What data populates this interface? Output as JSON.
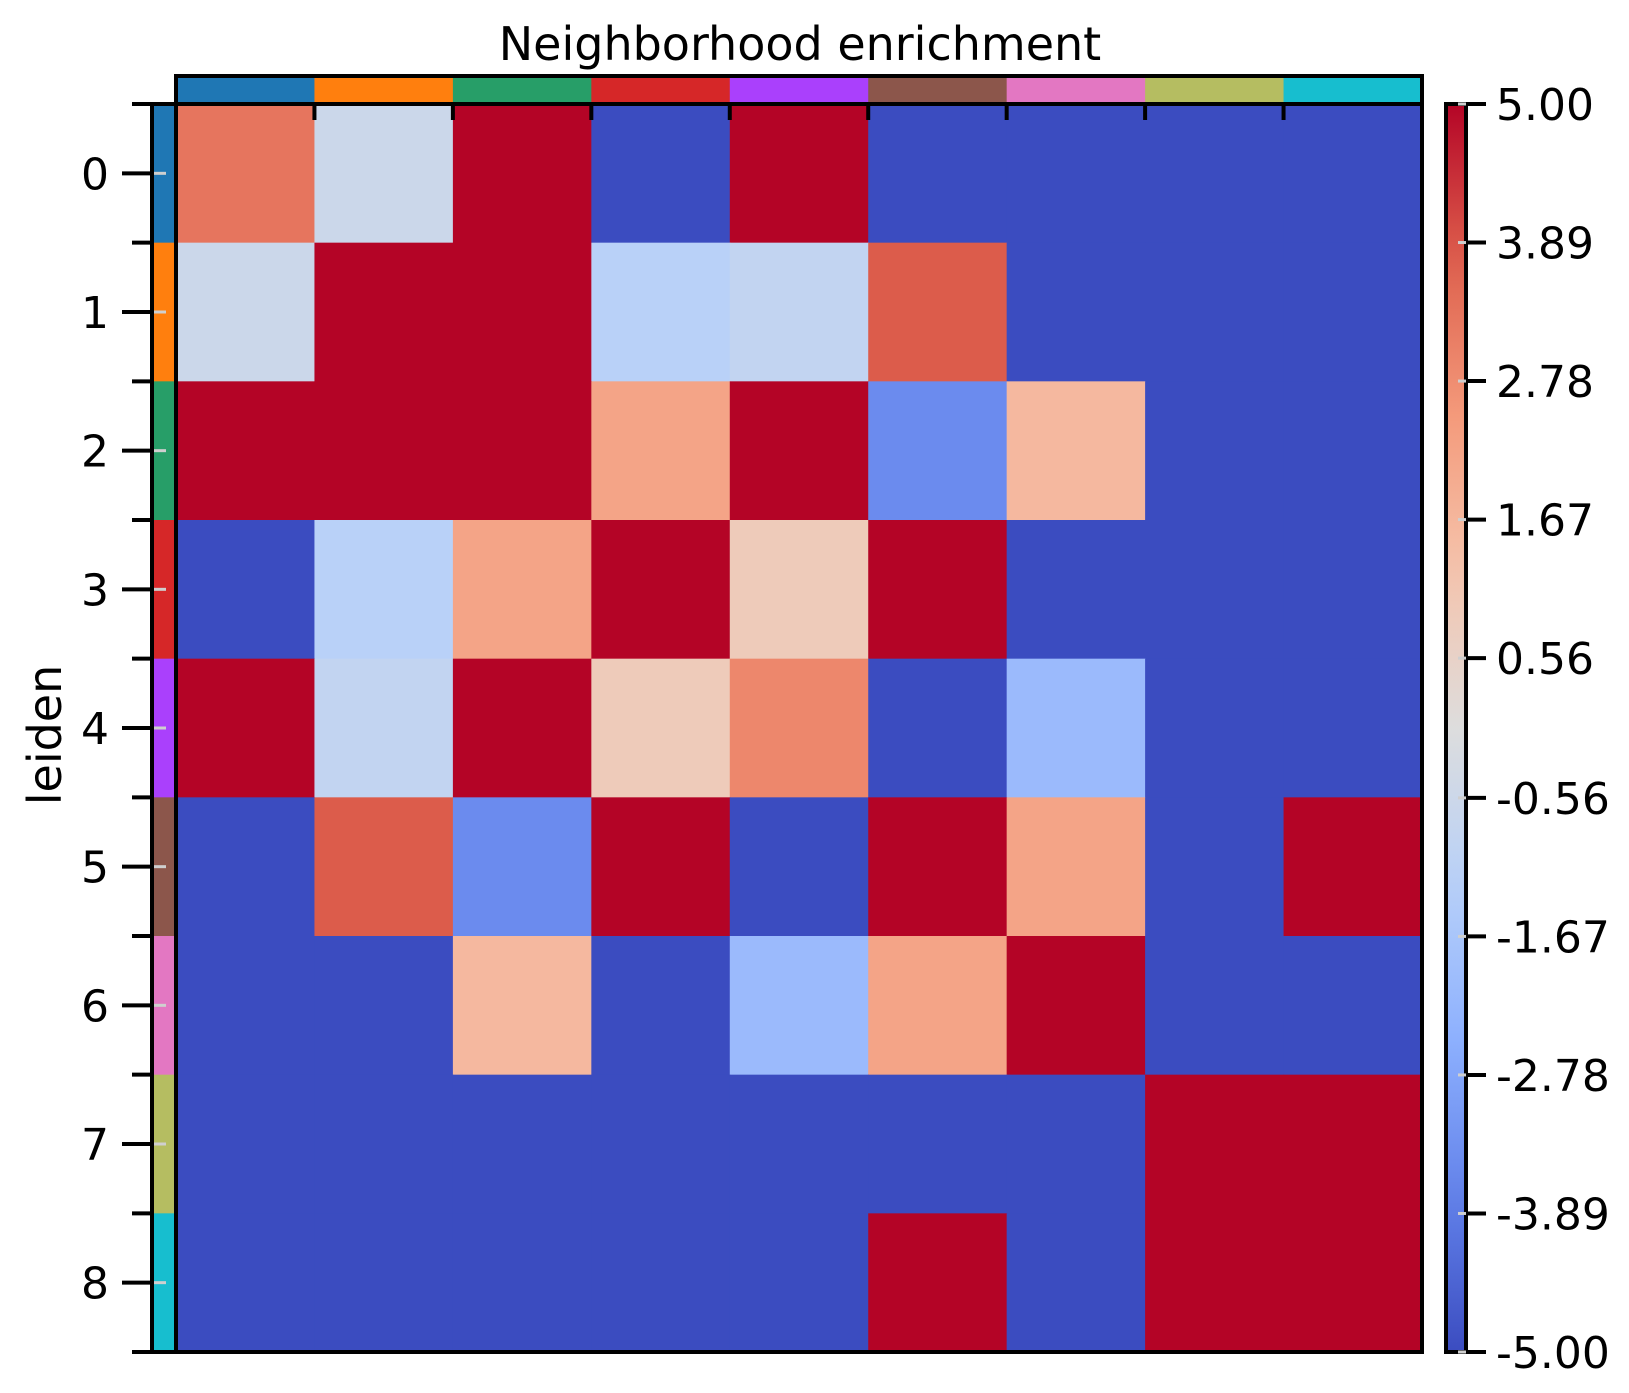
{
  "chart_data": {
    "type": "heatmap",
    "title": "Neighborhood enrichment",
    "ylabel": "leiden",
    "xlabel": "",
    "row_labels": [
      "0",
      "1",
      "2",
      "3",
      "4",
      "5",
      "6",
      "7",
      "8"
    ],
    "column_labels": [],
    "cluster_colors": [
      "#1f77b4",
      "#ff7f0e",
      "#279e68",
      "#d62728",
      "#aa40fc",
      "#8c564b",
      "#e377c2",
      "#b5bd61",
      "#17becf"
    ],
    "values": [
      [
        3.3,
        -0.6,
        5,
        -5,
        5,
        -5,
        -5,
        -5,
        -5
      ],
      [
        -0.6,
        5,
        5,
        -1.2,
        -0.9,
        3.8,
        -5,
        -5,
        -5
      ],
      [
        5,
        5,
        5,
        2.2,
        5,
        -3.5,
        1.6,
        -5,
        -5
      ],
      [
        -5,
        -1.2,
        2.2,
        5,
        0.9,
        5,
        -5,
        -5,
        -5
      ],
      [
        5,
        -0.9,
        5,
        0.9,
        2.9,
        -5,
        -2.1,
        -5,
        -5
      ],
      [
        -5,
        3.8,
        -3.5,
        5,
        -5,
        5,
        2.2,
        -5,
        5
      ],
      [
        -5,
        -5,
        1.6,
        -5,
        -2.1,
        2.2,
        5,
        -5,
        -5
      ],
      [
        -5,
        -5,
        -5,
        -5,
        -5,
        -5,
        -5,
        5,
        5
      ],
      [
        -5,
        -5,
        -5,
        -5,
        -5,
        5,
        -5,
        5,
        5
      ]
    ],
    "colormap": "coolwarm",
    "vmin": -5,
    "vmax": 5,
    "colorbar_ticks": [
      "5.00",
      "3.89",
      "2.78",
      "1.67",
      "0.56",
      "-0.56",
      "-1.67",
      "-2.78",
      "-3.89",
      "-5.00"
    ],
    "colorbar_values": [
      5,
      3.89,
      2.78,
      1.67,
      0.56,
      -0.56,
      -1.67,
      -2.78,
      -3.89,
      -5
    ],
    "colorbar_position": "right",
    "grid": false
  }
}
